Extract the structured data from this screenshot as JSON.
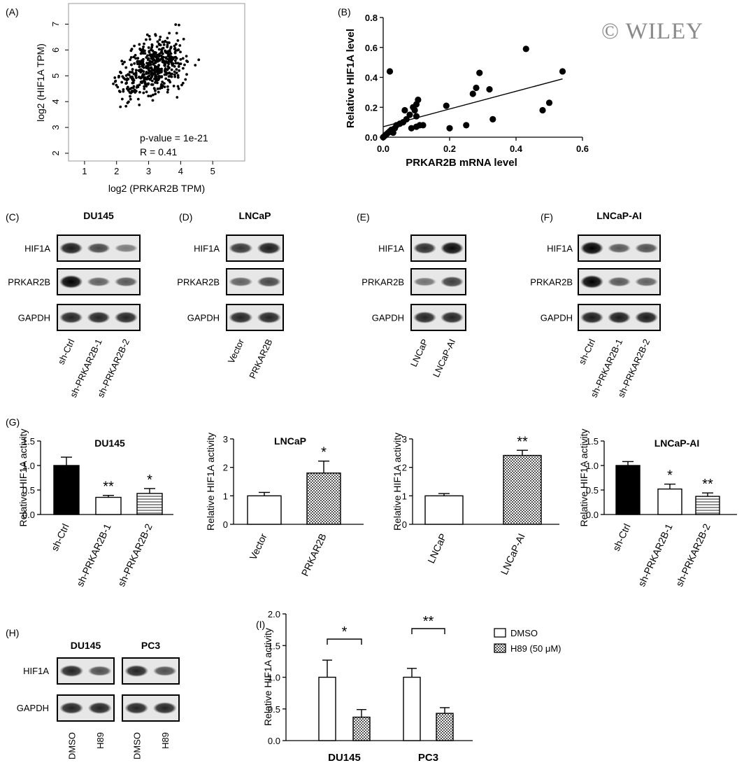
{
  "watermark": "© WILEY",
  "chart_data": [
    {
      "id": "A",
      "panel_label": "(A)",
      "type": "scatter",
      "xlabel": "log2 (PRKAR2B TPM)",
      "ylabel": "log2 (HIF1A TPM)",
      "xlim": [
        0.5,
        6
      ],
      "ylim": [
        1.7,
        7.8
      ],
      "xticks": [
        1,
        2,
        3,
        4,
        5
      ],
      "yticks": [
        2,
        3,
        4,
        5,
        6,
        7
      ],
      "n_points": 520,
      "annotations": [
        "p-value = 1e-21",
        "R = 0.41"
      ]
    },
    {
      "id": "B",
      "panel_label": "(B)",
      "type": "scatter",
      "xlabel": "PRKAR2B mRNA level",
      "ylabel": "Relative HIF1A level",
      "xlim": [
        0,
        0.6
      ],
      "ylim": [
        0,
        0.8
      ],
      "xticks": [
        "0.0",
        "0.2",
        "0.4",
        "0.6"
      ],
      "yticks": [
        "0.0",
        "0.2",
        "0.4",
        "0.6",
        "0.8"
      ],
      "x": [
        0.0,
        0.005,
        0.01,
        0.015,
        0.02,
        0.025,
        0.03,
        0.035,
        0.04,
        0.05,
        0.06,
        0.065,
        0.07,
        0.08,
        0.085,
        0.09,
        0.095,
        0.1,
        0.1,
        0.105,
        0.11,
        0.12,
        0.02,
        0.1,
        0.19,
        0.2,
        0.25,
        0.27,
        0.28,
        0.29,
        0.32,
        0.33,
        0.43,
        0.48,
        0.5,
        0.54
      ],
      "y": [
        0.0,
        0.01,
        0.02,
        0.03,
        0.04,
        0.05,
        0.03,
        0.06,
        0.08,
        0.09,
        0.1,
        0.18,
        0.12,
        0.15,
        0.06,
        0.2,
        0.18,
        0.07,
        0.22,
        0.25,
        0.08,
        0.08,
        0.44,
        0.14,
        0.21,
        0.06,
        0.08,
        0.29,
        0.33,
        0.43,
        0.32,
        0.12,
        0.59,
        0.18,
        0.23,
        0.44
      ],
      "trendline": {
        "x": [
          0,
          0.54
        ],
        "y": [
          0.07,
          0.39
        ]
      }
    },
    {
      "id": "G1",
      "panel_label": "(G)",
      "type": "bar",
      "title": "DU145",
      "ylabel": "Relative HIF1A activity",
      "categories": [
        "sh-Ctrl",
        "sh-PRKAR2B-1",
        "sh-PRKAR2B-2"
      ],
      "values": [
        1.0,
        0.35,
        0.43
      ],
      "errors": [
        0.17,
        0.04,
        0.1
      ],
      "significance": [
        "",
        "**",
        "*"
      ],
      "fills": [
        "black",
        "white",
        "hlines"
      ],
      "ylim": [
        0,
        1.5
      ],
      "yticks": [
        "0.0",
        "0.5",
        "1.0",
        "1.5"
      ]
    },
    {
      "id": "G2",
      "type": "bar",
      "title": "LNCaP",
      "ylabel": "Relative HIF1A activity",
      "categories": [
        "Vector",
        "PRKAR2B"
      ],
      "values": [
        1.0,
        1.8
      ],
      "errors": [
        0.12,
        0.42
      ],
      "significance": [
        "",
        "*"
      ],
      "fills": [
        "white",
        "checker"
      ],
      "ylim": [
        0,
        3
      ],
      "yticks": [
        "0",
        "1",
        "2",
        "3"
      ]
    },
    {
      "id": "G3",
      "type": "bar",
      "ylabel": "Relative HIF1A activity",
      "categories": [
        "LNCaP",
        "LNCaP-AI"
      ],
      "values": [
        1.0,
        2.42
      ],
      "errors": [
        0.08,
        0.18
      ],
      "significance": [
        "",
        "**"
      ],
      "fills": [
        "white",
        "checker"
      ],
      "ylim": [
        0,
        3
      ],
      "yticks": [
        "0",
        "1",
        "2",
        "3"
      ]
    },
    {
      "id": "G4",
      "type": "bar",
      "title": "LNCaP-AI",
      "ylabel": "Relative HIF1A activity",
      "categories": [
        "sh-Ctrl",
        "sh-PRKAR2B-1",
        "sh-PRKAR2B-2"
      ],
      "values": [
        1.0,
        0.52,
        0.37
      ],
      "errors": [
        0.08,
        0.1,
        0.07
      ],
      "significance": [
        "",
        "*",
        "**"
      ],
      "fills": [
        "black",
        "white",
        "hlines"
      ],
      "ylim": [
        0,
        1.5
      ],
      "yticks": [
        "0.0",
        "0.5",
        "1.0",
        "1.5"
      ]
    },
    {
      "id": "I",
      "panel_label": "(I)",
      "type": "bar",
      "ylabel": "Relative HIF1A activity",
      "categories": [
        "DU145",
        "PC3"
      ],
      "series": [
        {
          "name": "DMSO",
          "values": [
            1.0,
            1.0
          ],
          "errors": [
            0.27,
            0.14
          ],
          "fill": "white"
        },
        {
          "name": "H89 (50 μM)",
          "values": [
            0.37,
            0.43
          ],
          "errors": [
            0.12,
            0.09
          ],
          "fill": "checker"
        }
      ],
      "significance": [
        "*",
        "**"
      ],
      "ylim": [
        0,
        2.0
      ],
      "yticks": [
        "0.0",
        "0.5",
        "1.0",
        "1.5",
        "2.0"
      ],
      "legend": "right"
    }
  ],
  "blots": [
    {
      "id": "C",
      "panel_label": "(C)",
      "title": "DU145",
      "rows": [
        "HIF1A",
        "PRKAR2B",
        "GAPDH"
      ],
      "lanes": [
        "sh-Ctrl",
        "sh-PRKAR2B-1",
        "sh-PRKAR2B-2"
      ],
      "intensity": [
        [
          0.85,
          0.6,
          0.3
        ],
        [
          1.0,
          0.45,
          0.5
        ],
        [
          0.8,
          0.8,
          0.8
        ]
      ]
    },
    {
      "id": "D",
      "panel_label": "(D)",
      "title": "LNCaP",
      "rows": [
        "HIF1A",
        "PRKAR2B",
        "GAPDH"
      ],
      "lanes": [
        "Vector",
        "PRKAR2B"
      ],
      "intensity": [
        [
          0.7,
          0.85
        ],
        [
          0.45,
          0.6
        ],
        [
          0.8,
          0.8
        ]
      ]
    },
    {
      "id": "E",
      "panel_label": "(E)",
      "title": "",
      "rows": [
        "HIF1A",
        "PRKAR2B",
        "GAPDH"
      ],
      "lanes": [
        "LNCaP",
        "LNCaP-AI"
      ],
      "intensity": [
        [
          0.75,
          0.95
        ],
        [
          0.35,
          0.65
        ],
        [
          0.8,
          0.8
        ]
      ]
    },
    {
      "id": "F",
      "panel_label": "(F)",
      "title": "LNCaP-AI",
      "rows": [
        "HIF1A",
        "PRKAR2B",
        "GAPDH"
      ],
      "lanes": [
        "sh-Ctrl",
        "sh-PRKAR2B-1",
        "sh-PRKAR2B-2"
      ],
      "intensity": [
        [
          1.0,
          0.5,
          0.55
        ],
        [
          1.0,
          0.5,
          0.45
        ],
        [
          0.85,
          0.85,
          0.85
        ]
      ]
    },
    {
      "id": "H",
      "panel_label": "(H)",
      "titles": [
        "DU145",
        "PC3"
      ],
      "rows": [
        "HIF1A",
        "GAPDH"
      ],
      "lanes": [
        "DMSO",
        "H89",
        "DMSO",
        "H89"
      ],
      "intensity": [
        [
          0.8,
          0.55,
          0.8,
          0.55
        ],
        [
          0.8,
          0.8,
          0.8,
          0.8
        ]
      ]
    }
  ]
}
